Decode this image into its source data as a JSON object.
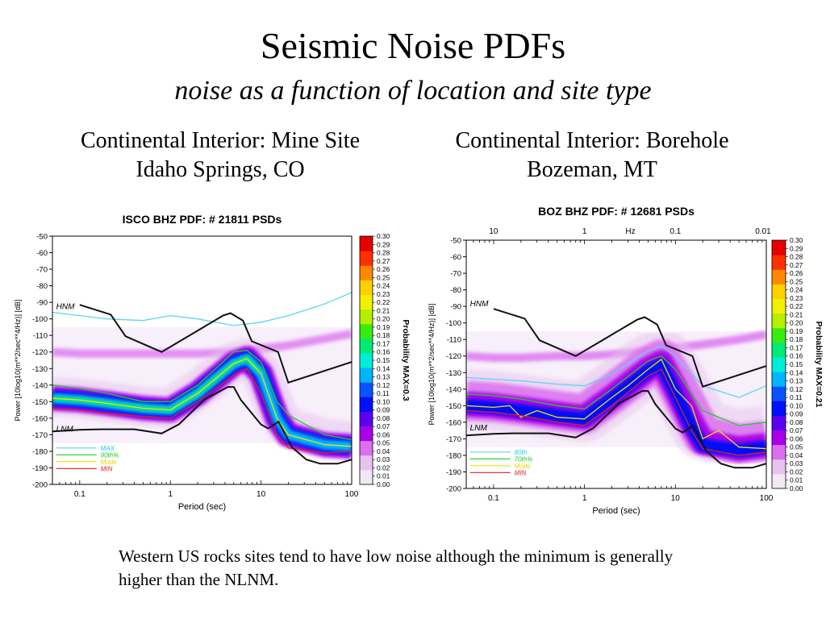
{
  "slide": {
    "title": "Seismic Noise PDFs",
    "subtitle": "noise as a function of location and site type",
    "left_heading": "Continental Interior: Mine Site",
    "left_subheading": "Idaho Springs, CO",
    "right_heading": "Continental Interior: Borehole",
    "right_subheading": "Bozeman, MT",
    "footnote": "Western US rocks sites tend to have low noise although the minimum is generally higher than the NLNM."
  },
  "colors": {
    "cmap": [
      "#f3e8f6",
      "#e7c3ef",
      "#db6ff0",
      "#a800ea",
      "#5a00ee",
      "#0010f8",
      "#0a52ff",
      "#00b6ff",
      "#00eed8",
      "#00ea76",
      "#38ec10",
      "#b4f000",
      "#f0f000",
      "#ffd000",
      "#ff8800",
      "#ff3000",
      "#e60000"
    ],
    "max": "#5ad6f0",
    "p90": "#22cc22",
    "mode": "#f0e000",
    "min": "#e02020",
    "model": "#111111",
    "legend_max": "#22c8ee",
    "legend_p90": "#22cc22",
    "legend_mode": "#e8d800",
    "legend_min": "#dd2222"
  },
  "chart_data": [
    {
      "type": "heatmap",
      "title": "ISCO BHZ   PDF: # 21811 PSDs",
      "xlabel": "Period (sec)",
      "ylabel": "Power [10log10(m**2/sec**4/Hz)] [dB]",
      "colorbar_label": "Probability MAX=0.3",
      "x_scale": "log",
      "xlim": [
        0.05,
        100
      ],
      "ylim": [
        -200,
        -50
      ],
      "x_ticks": [
        {
          "v": 0.1,
          "label": "0.1"
        },
        {
          "v": 1,
          "label": "1"
        },
        {
          "v": 10,
          "label": "10"
        },
        {
          "v": 100,
          "label": "100"
        }
      ],
      "y_ticks": [
        -50,
        -60,
        -70,
        -80,
        -90,
        -100,
        -110,
        -120,
        -130,
        -140,
        -150,
        -160,
        -170,
        -180,
        -190,
        -200
      ],
      "y_tick_labels": [
        "-50",
        "-60",
        "-70",
        "-80",
        "-90",
        "-100",
        "-110",
        "-120",
        "-130",
        "-140",
        "-150",
        "-160",
        "-170",
        "-180",
        "-190",
        "-200"
      ],
      "colorbar_ticks": [
        "0.30",
        "0.29",
        "0.28",
        "0.27",
        "0.26",
        "0.25",
        "0.24",
        "0.23",
        "0.22",
        "0.21",
        "0.20",
        "0.19",
        "0.18",
        "0.17",
        "0.16",
        "0.15",
        "0.14",
        "0.13",
        "0.12",
        "0.11",
        "0.10",
        "0.09",
        "0.08",
        "0.07",
        "0.06",
        "0.05",
        "0.04",
        "0.03",
        "0.02",
        "0.01",
        "0.00"
      ],
      "legend": [
        {
          "label": "MAX",
          "key": "max"
        },
        {
          "label": "90th%",
          "key": "p90"
        },
        {
          "label": "Mode",
          "key": "mode"
        },
        {
          "label": "MIN",
          "key": "min"
        }
      ],
      "model_labels": [
        {
          "text": "HNM",
          "x": 0.055,
          "y": -94
        },
        {
          "text": "LNM",
          "x": 0.055,
          "y": -168
        }
      ],
      "series": [
        {
          "key": "max",
          "x": [
            0.05,
            0.1,
            0.2,
            0.5,
            1,
            2,
            5,
            10,
            20,
            50,
            100
          ],
          "y": [
            -96,
            -98,
            -100,
            -101,
            -98,
            -100,
            -104,
            -102,
            -98,
            -91,
            -84
          ]
        },
        {
          "key": "p90",
          "x": [
            0.05,
            0.1,
            0.2,
            0.5,
            1,
            2,
            5,
            7,
            10,
            15,
            20,
            50,
            100
          ],
          "y": [
            -140,
            -142,
            -145,
            -150,
            -150,
            -140,
            -120,
            -119,
            -126,
            -150,
            -158,
            -170,
            -173
          ]
        },
        {
          "key": "mode",
          "x": [
            0.05,
            0.1,
            0.2,
            0.5,
            1,
            2,
            5,
            7,
            10,
            15,
            20,
            50,
            100
          ],
          "y": [
            -148,
            -149,
            -151,
            -154,
            -155,
            -145,
            -127,
            -124,
            -133,
            -160,
            -170,
            -176,
            -177
          ]
        },
        {
          "key": "min",
          "x": [
            0.05,
            0.1,
            0.2,
            0.5,
            1,
            2,
            5,
            7,
            10,
            15,
            20,
            50,
            100
          ],
          "y": [
            -154,
            -155,
            -157,
            -159,
            -160,
            -150,
            -134,
            -130,
            -145,
            -170,
            -178,
            -181,
            -180
          ]
        }
      ],
      "models": [
        {
          "key": "HNM",
          "x": [
            0.1,
            0.22,
            0.32,
            0.8,
            3.8,
            4.6,
            6.3,
            7.9,
            15.4,
            20,
            100
          ],
          "y": [
            -91.5,
            -97.4,
            -110.5,
            -120,
            -98,
            -96.5,
            -101,
            -113.5,
            -120,
            -138.5,
            -126
          ]
        },
        {
          "key": "LNM",
          "x": [
            0.05,
            0.1,
            0.17,
            0.4,
            0.8,
            1.24,
            2.4,
            4.3,
            5,
            6,
            10,
            12,
            15.6,
            21.9,
            31.6,
            45,
            70,
            100
          ],
          "y": [
            -168,
            -167,
            -166.7,
            -166.7,
            -169.2,
            -163.7,
            -148.6,
            -141.1,
            -141.1,
            -149,
            -163.8,
            -166.2,
            -162.1,
            -177.5,
            -185,
            -187.5,
            -187.5,
            -185
          ]
        }
      ],
      "pdf_bands": [
        {
          "x": [
            0.05,
            0.1,
            0.2,
            0.5,
            1,
            2,
            5,
            7,
            10,
            20,
            50,
            100
          ],
          "y": [
            -120,
            -121,
            -121,
            -121,
            -121,
            -121,
            -120,
            -119,
            -118,
            -116,
            -112,
            -109
          ],
          "w": 5,
          "level": 2,
          "op": 0.75
        },
        {
          "x": [
            0.05,
            0.1,
            0.2,
            0.5,
            1,
            2,
            5,
            7,
            10,
            15,
            20,
            50,
            100
          ],
          "y": [
            -147,
            -148,
            -150,
            -153,
            -154,
            -143,
            -126,
            -124,
            -132,
            -157,
            -166,
            -172,
            -174
          ],
          "w": 24,
          "level": 1,
          "op": 0.5
        },
        {
          "x": [
            0.05,
            0.1,
            0.2,
            0.5,
            1,
            2,
            5,
            7,
            10,
            15,
            20,
            50,
            100
          ],
          "y": [
            -148,
            -149,
            -151,
            -154,
            -155,
            -145,
            -127,
            -124,
            -133,
            -160,
            -170,
            -176,
            -177
          ],
          "w": 15,
          "level": 3,
          "op": 0.95
        },
        {
          "x": [
            0.05,
            0.1,
            0.2,
            0.5,
            1,
            2,
            5,
            7,
            10,
            15,
            20,
            50,
            100
          ],
          "y": [
            -148,
            -149,
            -151,
            -154,
            -155,
            -145,
            -127,
            -124,
            -133,
            -160,
            -170,
            -176,
            -177
          ],
          "w": 10,
          "level": 5,
          "op": 1
        },
        {
          "x": [
            0.05,
            0.1,
            0.2,
            0.5,
            1,
            2,
            5,
            7,
            10,
            15,
            20,
            50,
            100
          ],
          "y": [
            -148,
            -149,
            -151,
            -154,
            -155,
            -145,
            -127,
            -124,
            -133,
            -160,
            -170,
            -176,
            -177
          ],
          "w": 6,
          "level": 7,
          "op": 1
        },
        {
          "x": [
            0.05,
            0.1,
            0.2,
            0.5,
            1,
            2,
            5,
            7,
            10
          ],
          "y": [
            -148,
            -149,
            -151,
            -154,
            -155,
            -145,
            -127,
            -124,
            -133
          ],
          "w": 3,
          "level": 9,
          "op": 0.9
        }
      ]
    },
    {
      "type": "heatmap",
      "title": "BOZ BHZ   PDF: # 12681 PSDs",
      "xlabel": "Period (sec)",
      "ylabel": "Power [10log10(m**2/sec**4/Hz)] [dB]",
      "colorbar_label": "Probability MAX=0.21",
      "top_axis_label": "Hz",
      "top_ticks": [
        {
          "v": 0.1,
          "label": "10"
        },
        {
          "v": 1,
          "label": "1"
        },
        {
          "v": 10,
          "label": "0.1"
        },
        {
          "v": 100,
          "label": "0.01"
        }
      ],
      "x_scale": "log",
      "xlim": [
        0.05,
        100
      ],
      "ylim": [
        -200,
        -50
      ],
      "x_ticks": [
        {
          "v": 0.1,
          "label": "0.1"
        },
        {
          "v": 1,
          "label": "1"
        },
        {
          "v": 10,
          "label": "10"
        },
        {
          "v": 100,
          "label": "100"
        }
      ],
      "y_ticks": [
        -50,
        -60,
        -70,
        -80,
        -90,
        -100,
        -110,
        -120,
        -130,
        -140,
        -150,
        -160,
        -170,
        -180,
        -190,
        -200
      ],
      "y_tick_labels": [
        "-50",
        "-60",
        "-70",
        "-80",
        "-90",
        "-100",
        "-110",
        "-120",
        "-130",
        "-140",
        "-150",
        "-160",
        "-170",
        "-180",
        "-190",
        "-200"
      ],
      "colorbar_ticks": [
        "0.30",
        "0.29",
        "0.28",
        "0.27",
        "0.26",
        "0.25",
        "0.24",
        "0.23",
        "0.22",
        "0.21",
        "0.20",
        "0.19",
        "0.18",
        "0.17",
        "0.16",
        "0.15",
        "0.14",
        "0.13",
        "0.12",
        "0.11",
        "0.10",
        "0.09",
        "0.08",
        "0.07",
        "0.06",
        "0.05",
        "0.04",
        "0.03",
        "0.02",
        "0.01",
        "0.00"
      ],
      "legend": [
        {
          "label": "80th",
          "key": "max"
        },
        {
          "label": "70th%",
          "key": "p90"
        },
        {
          "label": "Mode",
          "key": "mode"
        },
        {
          "label": "MIN",
          "key": "min"
        }
      ],
      "model_labels": [
        {
          "text": "HNM",
          "x": 0.055,
          "y": -90
        },
        {
          "text": "LNM",
          "x": 0.055,
          "y": -165
        }
      ],
      "series": [
        {
          "key": "max",
          "x": [
            0.05,
            0.1,
            0.2,
            0.5,
            1,
            2,
            5,
            7,
            10,
            20,
            50,
            100
          ],
          "y": [
            -133,
            -134,
            -135,
            -137,
            -138,
            -131,
            -117,
            -114,
            -120,
            -138,
            -145,
            -138
          ]
        },
        {
          "key": "p90",
          "x": [
            0.05,
            0.1,
            0.2,
            0.5,
            1,
            2,
            5,
            7,
            10,
            20,
            50,
            100
          ],
          "y": [
            -143,
            -144,
            -146,
            -150,
            -152,
            -140,
            -123,
            -120,
            -128,
            -153,
            -162,
            -160
          ]
        },
        {
          "key": "mode",
          "x": [
            0.05,
            0.1,
            0.15,
            0.2,
            0.3,
            0.5,
            1,
            2,
            3,
            5,
            7,
            10,
            15,
            20,
            30,
            50,
            100
          ],
          "y": [
            -150,
            -151,
            -150,
            -157,
            -153,
            -157,
            -158,
            -145,
            -138,
            -128,
            -122,
            -140,
            -150,
            -170,
            -165,
            -175,
            -176
          ]
        },
        {
          "key": "min",
          "x": [
            0.05,
            0.1,
            0.2,
            0.5,
            1,
            2,
            5,
            7,
            10,
            15,
            20,
            50,
            100
          ],
          "y": [
            -153,
            -154,
            -156,
            -160,
            -162,
            -150,
            -132,
            -128,
            -145,
            -165,
            -176,
            -180,
            -178
          ]
        }
      ],
      "models": [
        {
          "key": "HNM",
          "x": [
            0.1,
            0.22,
            0.32,
            0.8,
            3.8,
            4.6,
            6.3,
            7.9,
            15.4,
            20,
            100
          ],
          "y": [
            -91.5,
            -97.4,
            -110.5,
            -120,
            -98,
            -96.5,
            -101,
            -113.5,
            -120,
            -138.5,
            -126
          ]
        },
        {
          "key": "LNM",
          "x": [
            0.05,
            0.1,
            0.17,
            0.4,
            0.8,
            1.24,
            2.4,
            4.3,
            5,
            6,
            10,
            12,
            15.6,
            21.9,
            31.6,
            45,
            70,
            100
          ],
          "y": [
            -168,
            -167,
            -166.7,
            -166.7,
            -169.2,
            -163.7,
            -148.6,
            -141.1,
            -141.1,
            -149,
            -163.8,
            -166.2,
            -162.1,
            -177.5,
            -185,
            -187.5,
            -187.5,
            -185
          ]
        }
      ],
      "pdf_bands": [
        {
          "x": [
            0.05,
            0.1,
            0.2,
            0.5,
            1,
            2,
            5,
            7,
            10,
            20,
            50,
            100
          ],
          "y": [
            -120,
            -121,
            -121,
            -120,
            -120,
            -119,
            -117,
            -116,
            -115,
            -113,
            -110,
            -107
          ],
          "w": 5,
          "level": 2,
          "op": 0.8
        },
        {
          "x": [
            0.05,
            0.1,
            0.2,
            0.5,
            1,
            2,
            5,
            7,
            10,
            15,
            20,
            50,
            100
          ],
          "y": [
            -146,
            -147,
            -149,
            -152,
            -154,
            -142,
            -125,
            -121,
            -134,
            -152,
            -165,
            -170,
            -168
          ],
          "w": 36,
          "level": 1,
          "op": 0.5
        },
        {
          "x": [
            0.05,
            0.1,
            0.2,
            0.5,
            1,
            2,
            5,
            7,
            10,
            15,
            20,
            50,
            100
          ],
          "y": [
            -147,
            -148,
            -150,
            -153,
            -155,
            -143,
            -126,
            -122,
            -136,
            -155,
            -168,
            -173,
            -171
          ],
          "w": 24,
          "level": 2,
          "op": 0.85
        },
        {
          "x": [
            0.05,
            0.1,
            0.2,
            0.5,
            1,
            2,
            5,
            7,
            10,
            15,
            20,
            50,
            100
          ],
          "y": [
            -149,
            -150,
            -152,
            -155,
            -157,
            -145,
            -128,
            -124,
            -140,
            -160,
            -172,
            -176,
            -174
          ],
          "w": 15,
          "level": 3,
          "op": 0.95
        },
        {
          "x": [
            0.05,
            0.1,
            0.2,
            0.5,
            1,
            2,
            5,
            7,
            10,
            15,
            20,
            50,
            100
          ],
          "y": [
            -150,
            -151,
            -153,
            -156,
            -158,
            -146,
            -129,
            -125,
            -142,
            -163,
            -174,
            -177,
            -175
          ],
          "w": 8,
          "level": 5,
          "op": 1
        }
      ]
    }
  ]
}
